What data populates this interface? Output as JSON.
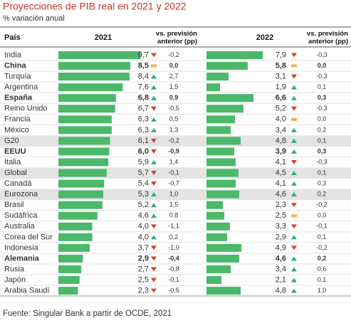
{
  "chart_data": {
    "type": "table-bar",
    "title": "Proyecciones de PIB real en 2021 y 2022",
    "subtitle": "% variación anual",
    "source": "Fuente: Singular Bank a partir de OCDE, 2021",
    "category_header": "País",
    "categories": [
      "India",
      "China",
      "Turquía",
      "Argentina",
      "España",
      "Reino Unido",
      "Francia",
      "México",
      "G20",
      "EEUU",
      "Italia",
      "Global",
      "Canadá",
      "Eurozona",
      "Brasil",
      "Sudáfrica",
      "Australia",
      "Corea del Sur",
      "Indonesia",
      "Alemania",
      "Rusia",
      "Japón",
      "Arabia Saudí"
    ],
    "row_styles": [
      "normal",
      "bold",
      "normal",
      "normal",
      "bold",
      "normal",
      "normal",
      "normal",
      "shaded",
      "bold",
      "normal",
      "shaded",
      "normal",
      "shaded",
      "normal",
      "normal",
      "normal",
      "normal",
      "normal",
      "bold",
      "normal",
      "normal",
      "normal"
    ],
    "xlim": [
      0,
      10
    ],
    "color": "#4cb86b",
    "up_color": "#3aa58a",
    "down_color": "#d9412b",
    "flat_color": "#f0b050",
    "series": [
      {
        "name": "2021",
        "revision_header": "vs. previsión anterior (pp)",
        "values": [
          9.7,
          8.5,
          8.4,
          7.6,
          6.8,
          6.7,
          6.3,
          6.3,
          6.1,
          6.0,
          5.9,
          5.7,
          5.4,
          5.3,
          5.2,
          4.6,
          4.0,
          4.0,
          3.7,
          2.9,
          2.7,
          2.5,
          2.3
        ],
        "value_labels": [
          "9,7",
          "8,5",
          "8,4",
          "7,6",
          "6,8",
          "6,7",
          "6,3",
          "6,3",
          "6,1",
          "6,0",
          "5,9",
          "5,7",
          "5,4",
          "5,3",
          "5,2",
          "4,6",
          "4,0",
          "4,0",
          "3,7",
          "2,9",
          "2,7",
          "2,5",
          "2,3"
        ],
        "revisions": [
          -0.2,
          0.0,
          2.7,
          1.5,
          0.9,
          -0.5,
          0.5,
          1.3,
          -0.2,
          -0.9,
          1.4,
          -0.1,
          -0.7,
          1.0,
          1.5,
          0.8,
          -1.1,
          0.2,
          -1.0,
          -0.4,
          -0.8,
          -0.1,
          -0.5
        ],
        "revision_labels": [
          "-0,2",
          "0,0",
          "2,7",
          "1,5",
          "0,9",
          "-0,5",
          "0,5",
          "1,3",
          "-0,2",
          "-0,9",
          "1,4",
          "-0,1",
          "-0,7",
          "1,0",
          "1,5",
          "0,8",
          "-1,1",
          "0,2",
          "-1,0",
          "-0,4",
          "-0,8",
          "-0,1",
          "-0,5"
        ]
      },
      {
        "name": "2022",
        "revision_header": "vs. previsión anterior (pp)",
        "values": [
          7.9,
          5.8,
          3.1,
          1.9,
          6.6,
          5.2,
          4.0,
          3.4,
          4.8,
          3.9,
          4.1,
          4.5,
          4.1,
          4.6,
          2.3,
          2.5,
          3.3,
          2.9,
          4.9,
          4.6,
          3.4,
          2.1,
          4.8
        ],
        "value_labels": [
          "7,9",
          "5,8",
          "3,1",
          "1,9",
          "6,6",
          "5,2",
          "4,0",
          "3,4",
          "4,8",
          "3,9",
          "4,1",
          "4,5",
          "4,1",
          "4,6",
          "2,3",
          "2,5",
          "3,3",
          "2,9",
          "4,9",
          "4,6",
          "3,4",
          "2,1",
          "4,8"
        ],
        "revisions": [
          -0.3,
          0.0,
          -0.3,
          0.1,
          0.3,
          -0.3,
          0.0,
          0.2,
          0.1,
          0.3,
          -0.3,
          0.1,
          0.3,
          0.2,
          -0.2,
          0.0,
          -0.1,
          0.1,
          -0.2,
          0.2,
          0.6,
          0.1,
          1.0
        ],
        "revision_labels": [
          "-0,3",
          "0,0",
          "-0,3",
          "0,1",
          "0,3",
          "-0,3",
          "0,0",
          "0,2",
          "0,1",
          "0,3",
          "-0,3",
          "0,1",
          "0,3",
          "0,2",
          "-0,2",
          "0,0",
          "-0,1",
          "0,1",
          "-0,2",
          "0,2",
          "0,6",
          "0,1",
          "1,0"
        ]
      }
    ]
  }
}
